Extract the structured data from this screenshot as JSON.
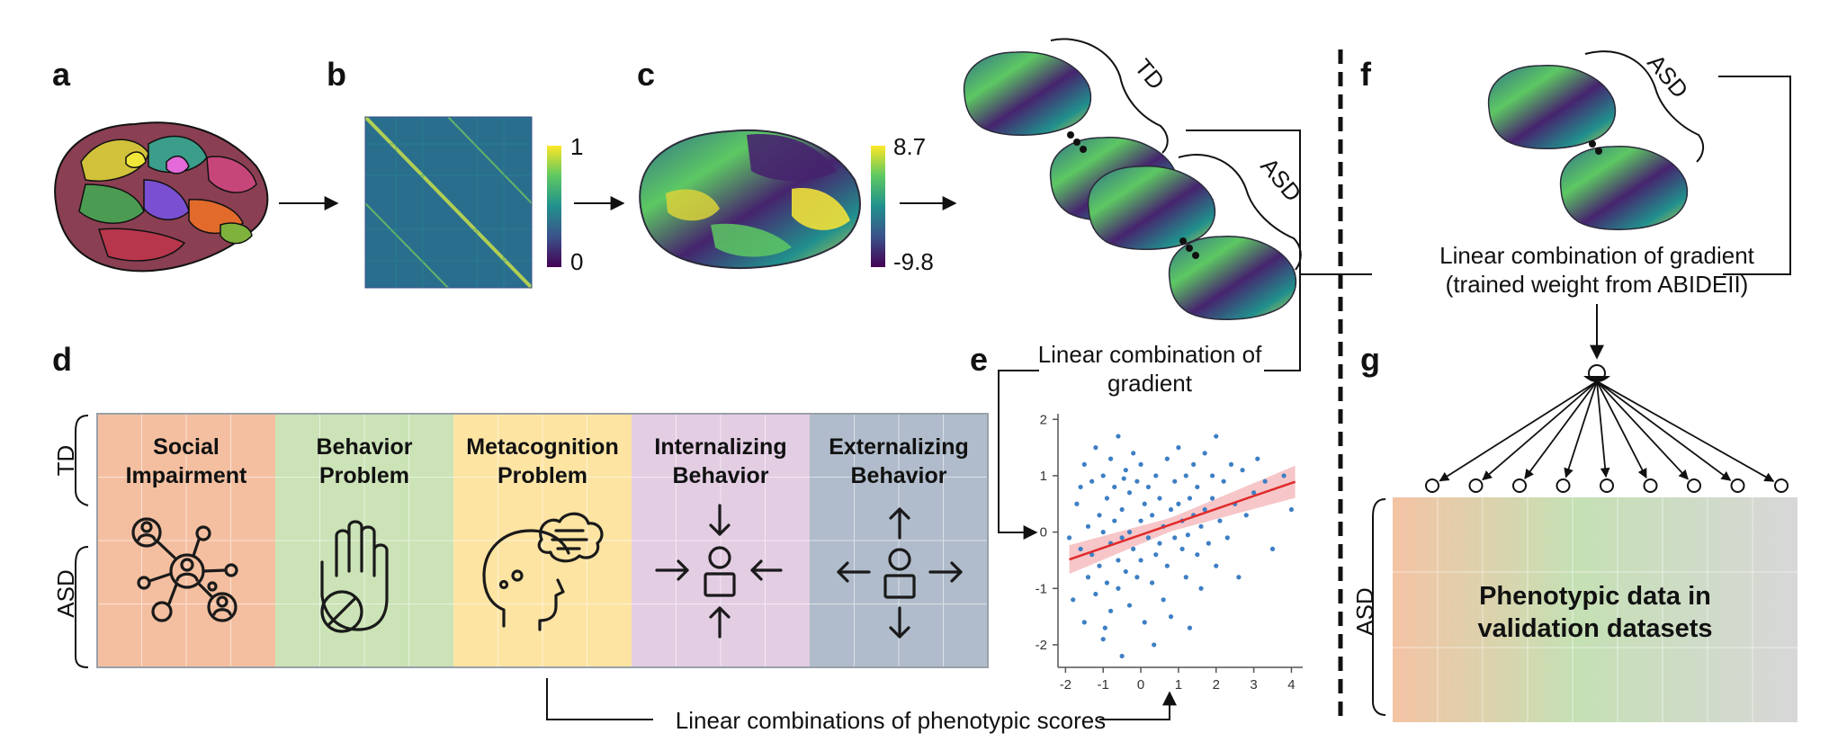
{
  "panels": {
    "a": "a",
    "b": "b",
    "c": "c",
    "d": "d",
    "e": "e",
    "f": "f",
    "g": "g"
  },
  "colorbars": {
    "b": {
      "max": "1",
      "min": "0"
    },
    "c": {
      "max": "8.7",
      "min": "-9.8"
    }
  },
  "groups": {
    "td": "TD",
    "asd": "ASD"
  },
  "texts": {
    "linear_combination_line1": "Linear combination of",
    "linear_combination_line2": "gradient",
    "trained_line1": "Linear combination of gradient",
    "trained_line2": "(trained weight from ABIDEII)",
    "phenotypic_scores": "Linear combinations of phenotypic scores",
    "validation_line1": "Phenotypic data in",
    "validation_line2": "validation datasets"
  },
  "categories": [
    {
      "line1": "Social",
      "line2": "Impairment",
      "color": "#f4bfa0",
      "icon": "social-network-icon"
    },
    {
      "line1": "Behavior",
      "line2": "Problem",
      "color": "#cbe3b6",
      "icon": "stop-hand-icon"
    },
    {
      "line1": "Metacognition",
      "line2": "Problem",
      "color": "#fde4a3",
      "icon": "thinking-head-icon"
    },
    {
      "line1": "Internalizing",
      "line2": "Behavior",
      "color": "#e3cde3",
      "icon": "arrows-inward-icon"
    },
    {
      "line1": "Externalizing",
      "line2": "Behavior",
      "color": "#b0bccb",
      "icon": "arrows-outward-icon"
    }
  ],
  "colors": {
    "scatter_point": "#3d7fc4",
    "regression_line": "#e02a2a",
    "confidence_band": "#f4b3b6",
    "viridis": [
      "#440154",
      "#3b528b",
      "#21908d",
      "#5dc863",
      "#fde725"
    ]
  },
  "chart_data": {
    "type": "scatter",
    "title": "",
    "xlabel": "",
    "ylabel": "",
    "xlim": [
      -2.2,
      4.3
    ],
    "ylim": [
      -2.4,
      2.1
    ],
    "x_ticks": [
      "-2",
      "-1",
      "0",
      "1",
      "2",
      "3",
      "4"
    ],
    "y_ticks": [
      "2",
      "1",
      "0",
      "-1",
      "-2"
    ],
    "regression": {
      "slope": 0.23,
      "intercept": -0.05
    },
    "points": [
      [
        -1.8,
        -1.2
      ],
      [
        -1.7,
        0.5
      ],
      [
        -1.6,
        -0.3
      ],
      [
        -1.5,
        1.2
      ],
      [
        -1.5,
        -1.6
      ],
      [
        -1.4,
        0.1
      ],
      [
        -1.4,
        -0.8
      ],
      [
        -1.3,
        0.9
      ],
      [
        -1.3,
        -0.4
      ],
      [
        -1.2,
        1.5
      ],
      [
        -1.2,
        -1.1
      ],
      [
        -1.1,
        0.3
      ],
      [
        -1.1,
        -0.6
      ],
      [
        -1.0,
        1.0
      ],
      [
        -1.0,
        -1.9
      ],
      [
        -1.0,
        0.0
      ],
      [
        -0.9,
        0.6
      ],
      [
        -0.9,
        -0.9
      ],
      [
        -0.8,
        1.3
      ],
      [
        -0.8,
        -0.2
      ],
      [
        -0.8,
        -1.4
      ],
      [
        -0.7,
        0.8
      ],
      [
        -0.7,
        0.2
      ],
      [
        -0.6,
        -0.5
      ],
      [
        -0.6,
        1.7
      ],
      [
        -0.6,
        -1.0
      ],
      [
        -0.5,
        0.4
      ],
      [
        -0.5,
        -0.1
      ],
      [
        -0.5,
        -2.2
      ],
      [
        -0.4,
        1.1
      ],
      [
        -0.4,
        -0.7
      ],
      [
        -0.3,
        0.7
      ],
      [
        -0.3,
        0.0
      ],
      [
        -0.3,
        -1.3
      ],
      [
        -0.2,
        1.4
      ],
      [
        -0.2,
        -0.3
      ],
      [
        -0.1,
        0.9
      ],
      [
        -0.1,
        -0.8
      ],
      [
        0.0,
        0.2
      ],
      [
        0.0,
        1.2
      ],
      [
        0.0,
        -0.5
      ],
      [
        0.1,
        0.5
      ],
      [
        0.1,
        -1.6
      ],
      [
        0.2,
        -0.1
      ],
      [
        0.2,
        0.8
      ],
      [
        0.3,
        0.3
      ],
      [
        0.3,
        -0.9
      ],
      [
        0.4,
        1.0
      ],
      [
        0.4,
        -0.4
      ],
      [
        0.5,
        0.6
      ],
      [
        0.5,
        -0.2
      ],
      [
        0.6,
        -1.2
      ],
      [
        0.6,
        0.1
      ],
      [
        0.7,
        1.3
      ],
      [
        0.7,
        -0.6
      ],
      [
        0.8,
        0.4
      ],
      [
        0.8,
        -1.5
      ],
      [
        0.9,
        0.9
      ],
      [
        0.9,
        -0.1
      ],
      [
        1.0,
        0.5
      ],
      [
        1.0,
        1.5
      ],
      [
        1.1,
        -0.3
      ],
      [
        1.1,
        0.2
      ],
      [
        1.2,
        -0.8
      ],
      [
        1.2,
        1.0
      ],
      [
        1.3,
        0.6
      ],
      [
        1.3,
        -1.7
      ],
      [
        1.4,
        0.3
      ],
      [
        1.4,
        1.2
      ],
      [
        1.5,
        -0.4
      ],
      [
        1.5,
        0.8
      ],
      [
        1.6,
        0.1
      ],
      [
        1.6,
        -1.0
      ],
      [
        1.7,
        1.4
      ],
      [
        1.7,
        0.4
      ],
      [
        1.8,
        -0.2
      ],
      [
        1.9,
        1.0
      ],
      [
        1.9,
        0.6
      ],
      [
        2.0,
        -0.6
      ],
      [
        2.0,
        1.7
      ],
      [
        2.1,
        0.2
      ],
      [
        2.2,
        0.9
      ],
      [
        2.3,
        -0.1
      ],
      [
        2.4,
        1.2
      ],
      [
        2.5,
        0.5
      ],
      [
        2.6,
        -0.8
      ],
      [
        2.7,
        1.1
      ],
      [
        2.8,
        0.3
      ],
      [
        3.0,
        0.7
      ],
      [
        3.1,
        1.3
      ],
      [
        3.3,
        0.9
      ],
      [
        3.5,
        -0.3
      ],
      [
        3.8,
        1.0
      ],
      [
        4.0,
        0.4
      ],
      [
        -1.9,
        -0.1
      ],
      [
        -1.6,
        0.8
      ],
      [
        -0.95,
        -1.7
      ],
      [
        -0.45,
        0.95
      ],
      [
        0.35,
        -2.0
      ],
      [
        1.25,
        -0.05
      ]
    ]
  }
}
